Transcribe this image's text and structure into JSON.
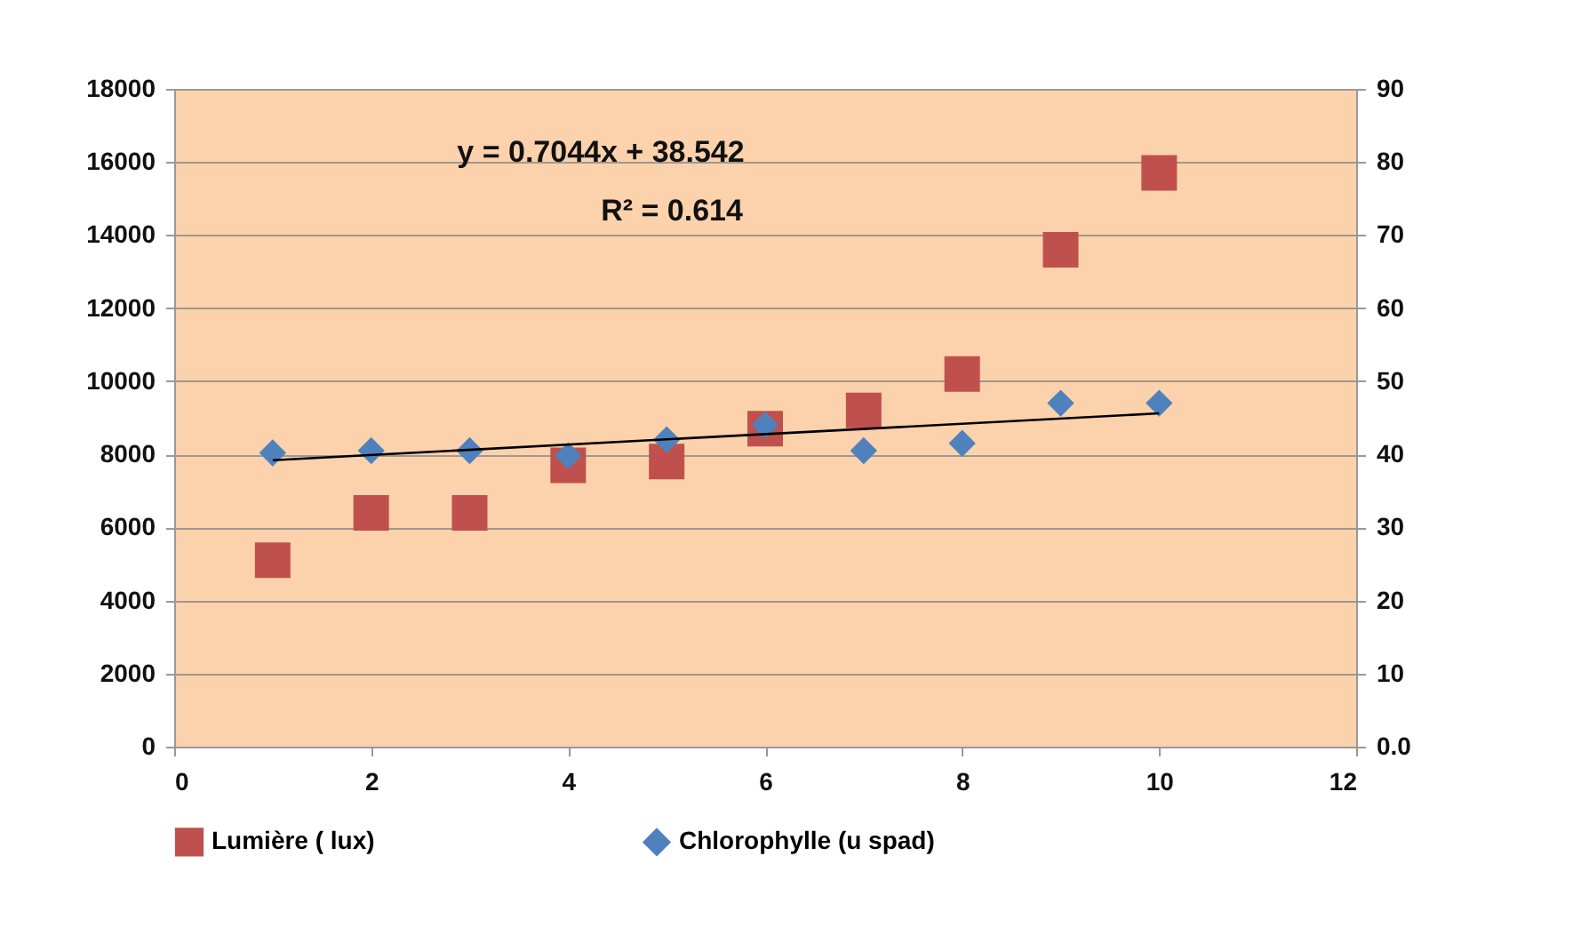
{
  "chart_data": {
    "type": "scatter",
    "x": [
      1,
      2,
      3,
      4,
      5,
      6,
      7,
      8,
      9,
      10
    ],
    "xlim": [
      0,
      12
    ],
    "xticks": [
      0,
      2,
      4,
      6,
      8,
      10,
      12
    ],
    "ylim": [
      0,
      18000
    ],
    "yticks": [
      0,
      2000,
      4000,
      6000,
      8000,
      10000,
      12000,
      14000,
      16000,
      18000
    ],
    "y2lim": [
      0,
      90
    ],
    "y2ticks": [
      {
        "value": 0,
        "label": "0.0"
      },
      10,
      20,
      30,
      40,
      50,
      60,
      70,
      80,
      90
    ],
    "series": [
      {
        "name": "Lumière ( lux)",
        "color": "#c0504d",
        "marker": "square",
        "values": [
          5100,
          6400,
          6400,
          7700,
          7800,
          8700,
          9200,
          10200,
          13600,
          15700
        ]
      },
      {
        "name": "Chlorophylle (u spad)",
        "color": "#4f81bd",
        "marker": "diamond",
        "axis": "y2",
        "values": [
          40.2,
          40.5,
          40.5,
          39.8,
          42,
          44,
          40.5,
          41.5,
          47,
          47
        ]
      },
      {
        "type": "line",
        "color": "#000000",
        "axis": "y2",
        "x": [
          1,
          10
        ],
        "values": [
          39.2,
          45.6
        ]
      }
    ],
    "annotations": [
      "y = 0.7044x + 38.542",
      "R² = 0.614"
    ],
    "grid": "y",
    "legend": "bottom"
  }
}
